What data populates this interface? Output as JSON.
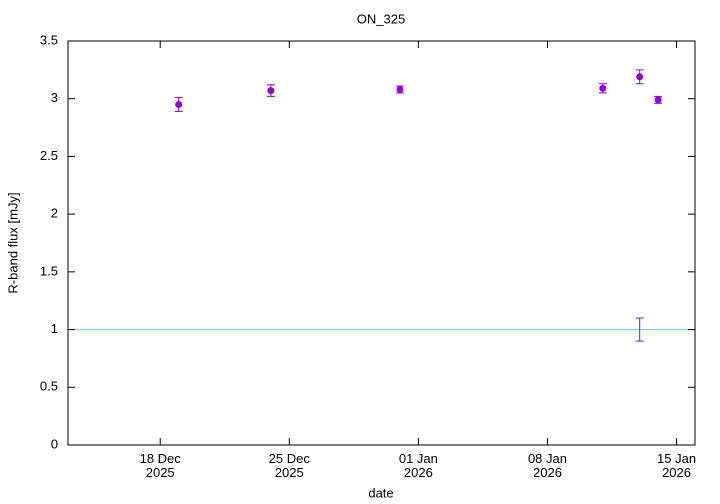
{
  "chart_data": {
    "type": "errorbar-scatter",
    "title": "ON_325",
    "xlabel": "date",
    "ylabel": "R-band flux [mJy]",
    "xlim": [
      "2025-12-13",
      "2026-01-16"
    ],
    "xticks": [
      {
        "value": "2025-12-18",
        "label": "18 Dec\n2025"
      },
      {
        "value": "2025-12-25",
        "label": "25 Dec\n2025"
      },
      {
        "value": "2026-01-01",
        "label": "01 Jan\n2026"
      },
      {
        "value": "2026-01-08",
        "label": "08 Jan\n2026"
      },
      {
        "value": "2026-01-15",
        "label": "15 Jan\n2026"
      }
    ],
    "ylim": [
      0,
      3.5
    ],
    "yticks": [
      0,
      0.5,
      1,
      1.5,
      2,
      2.5,
      3,
      3.5
    ],
    "hline": {
      "value": 1,
      "color": "#87ceeb"
    },
    "series": [
      {
        "color": "#9400d3",
        "marker": true,
        "x": [
          "2025-12-19",
          "2025-12-24",
          "2025-12-31",
          "2026-01-11",
          "2026-01-13",
          "2026-01-14"
        ],
        "values": [
          2.95,
          3.07,
          3.08,
          3.09,
          3.19,
          2.99
        ],
        "errors": [
          0.06,
          0.05,
          0.03,
          0.04,
          0.06,
          0.03
        ]
      },
      {
        "color": "#9400d3",
        "marker": false,
        "x": [
          "2026-01-13"
        ],
        "values": [
          1.0
        ],
        "errors": [
          0.1
        ]
      }
    ]
  }
}
